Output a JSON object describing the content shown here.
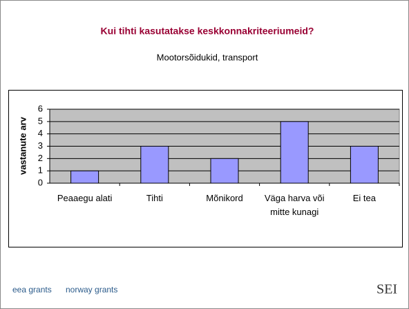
{
  "chart_data": {
    "type": "bar",
    "title": "Kui tihti kasutatakse keskkonnakriteeriumeid?",
    "subtitle": "Mootorsõidukid, transport",
    "y_label": "vastanute arv",
    "categories": [
      "Peaaegu alati",
      "Tihti",
      "Mõnikord",
      "Väga harva või mitte kunagi",
      "Ei tea"
    ],
    "values": [
      1,
      3,
      2,
      5,
      3
    ],
    "color": "#9999ff",
    "ylim": [
      0,
      6
    ],
    "yticks": [
      0,
      1,
      2,
      3,
      4,
      5,
      6
    ],
    "grid": true
  },
  "footer": {
    "logo_left_1": "eea grants",
    "logo_left_2": "norway grants",
    "logo_right": "SEI"
  }
}
